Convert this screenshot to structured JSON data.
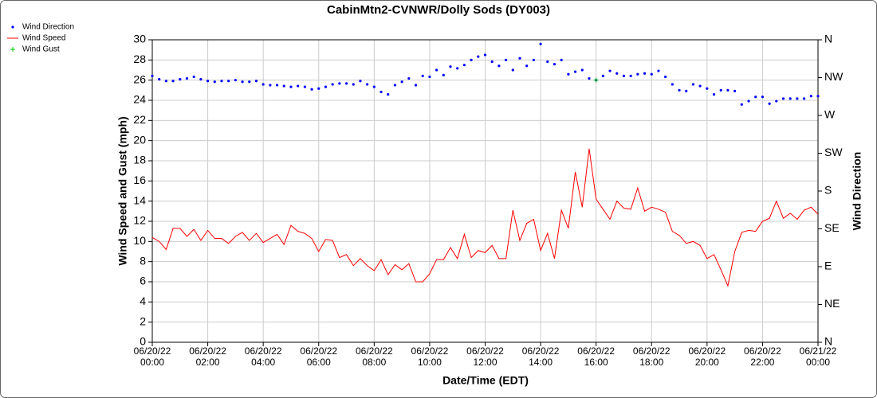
{
  "chart_data": {
    "type": "line",
    "title": "CabinMtn2-CVNWR/Dolly Sods (DY003)",
    "xlabel": "Date/Time (EDT)",
    "ylabel": "Wind Speed and Gust (mph)",
    "y2label": "Wind Direction",
    "grid": true,
    "legend": "top-left",
    "xlim": [
      "06/20/22 00:00",
      "06/21/22 00:00"
    ],
    "xticks": [
      "06/20/22 00:00",
      "06/20/22 02:00",
      "06/20/22 04:00",
      "06/20/22 06:00",
      "06/20/22 08:00",
      "06/20/22 10:00",
      "06/20/22 12:00",
      "06/20/22 14:00",
      "06/20/22 16:00",
      "06/20/22 18:00",
      "06/20/22 20:00",
      "06/20/22 22:00",
      "06/21/22 00:00"
    ],
    "ylim": [
      0,
      30
    ],
    "yticks": [
      0,
      2,
      4,
      6,
      8,
      10,
      12,
      14,
      16,
      18,
      20,
      22,
      24,
      26,
      28,
      30
    ],
    "y2lim": [
      0,
      360
    ],
    "y2ticks": [
      {
        "value": 0,
        "label": "N"
      },
      {
        "value": 45,
        "label": "NE"
      },
      {
        "value": 90,
        "label": "E"
      },
      {
        "value": 135,
        "label": "SE"
      },
      {
        "value": 180,
        "label": "S"
      },
      {
        "value": 225,
        "label": "SW"
      },
      {
        "value": 270,
        "label": "W"
      },
      {
        "value": 315,
        "label": "NW"
      },
      {
        "value": 360,
        "label": "N"
      }
    ],
    "x": [
      "06/20/22 00:00",
      "06/20/22 00:15",
      "06/20/22 00:30",
      "06/20/22 00:45",
      "06/20/22 01:00",
      "06/20/22 01:15",
      "06/20/22 01:30",
      "06/20/22 01:45",
      "06/20/22 02:00",
      "06/20/22 02:15",
      "06/20/22 02:30",
      "06/20/22 02:45",
      "06/20/22 03:00",
      "06/20/22 03:15",
      "06/20/22 03:30",
      "06/20/22 03:45",
      "06/20/22 04:00",
      "06/20/22 04:15",
      "06/20/22 04:30",
      "06/20/22 04:45",
      "06/20/22 05:00",
      "06/20/22 05:15",
      "06/20/22 05:30",
      "06/20/22 05:45",
      "06/20/22 06:00",
      "06/20/22 06:15",
      "06/20/22 06:30",
      "06/20/22 06:45",
      "06/20/22 07:00",
      "06/20/22 07:15",
      "06/20/22 07:30",
      "06/20/22 07:45",
      "06/20/22 08:00",
      "06/20/22 08:15",
      "06/20/22 08:30",
      "06/20/22 08:45",
      "06/20/22 09:00",
      "06/20/22 09:15",
      "06/20/22 09:30",
      "06/20/22 09:45",
      "06/20/22 10:00",
      "06/20/22 10:15",
      "06/20/22 10:30",
      "06/20/22 10:45",
      "06/20/22 11:00",
      "06/20/22 11:15",
      "06/20/22 11:30",
      "06/20/22 11:45",
      "06/20/22 12:00",
      "06/20/22 12:15",
      "06/20/22 12:30",
      "06/20/22 12:45",
      "06/20/22 13:00",
      "06/20/22 13:15",
      "06/20/22 13:30",
      "06/20/22 13:45",
      "06/20/22 14:00",
      "06/20/22 14:15",
      "06/20/22 14:30",
      "06/20/22 14:45",
      "06/20/22 15:00",
      "06/20/22 15:15",
      "06/20/22 15:30",
      "06/20/22 15:45",
      "06/20/22 16:00",
      "06/20/22 16:15",
      "06/20/22 16:30",
      "06/20/22 16:45",
      "06/20/22 17:00",
      "06/20/22 17:15",
      "06/20/22 17:30",
      "06/20/22 17:45",
      "06/20/22 18:00",
      "06/20/22 18:15",
      "06/20/22 18:30",
      "06/20/22 18:45",
      "06/20/22 19:00",
      "06/20/22 19:15",
      "06/20/22 19:30",
      "06/20/22 19:45",
      "06/20/22 20:00",
      "06/20/22 20:15",
      "06/20/22 20:30",
      "06/20/22 20:45",
      "06/20/22 21:00",
      "06/20/22 21:15",
      "06/20/22 21:30",
      "06/20/22 21:45",
      "06/20/22 22:00",
      "06/20/22 22:15",
      "06/20/22 22:30",
      "06/20/22 22:45",
      "06/20/22 23:00",
      "06/20/22 23:15",
      "06/20/22 23:30",
      "06/20/22 23:45",
      "06/21/22 00:00"
    ],
    "series": [
      {
        "name": "Wind Direction",
        "color": "#0000ff",
        "axis": "y2",
        "mode": "markers",
        "values": [
          317,
          313,
          311,
          311,
          313,
          314,
          316,
          313,
          311,
          310,
          311,
          311,
          312,
          310,
          310,
          311,
          307,
          306,
          306,
          305,
          304,
          305,
          304,
          301,
          302,
          304,
          307,
          308,
          308,
          307,
          311,
          307,
          304,
          298,
          295,
          306,
          310,
          314,
          306,
          317,
          316,
          324,
          318,
          328,
          326,
          330,
          336,
          340,
          342,
          334,
          329,
          336,
          324,
          338,
          329,
          336,
          355,
          334,
          331,
          336,
          319,
          322,
          324,
          314,
          312,
          317,
          323,
          320,
          317,
          317,
          319,
          320,
          319,
          323,
          316,
          307,
          300,
          299,
          307,
          305,
          302,
          295,
          300,
          300,
          299,
          283,
          287,
          292,
          292,
          284,
          287,
          290,
          290,
          290,
          290,
          293,
          293
        ]
      },
      {
        "name": "Wind Speed",
        "color": "#ff0000",
        "mode": "line",
        "values": [
          10.4,
          10.0,
          9.2,
          11.3,
          11.3,
          10.5,
          11.2,
          10.1,
          11.1,
          10.3,
          10.3,
          9.8,
          10.5,
          10.9,
          10.1,
          10.8,
          9.9,
          10.3,
          10.7,
          9.7,
          11.6,
          11.0,
          10.8,
          10.3,
          9.0,
          10.2,
          10.1,
          8.4,
          8.7,
          7.6,
          8.3,
          7.6,
          7.1,
          8.2,
          6.7,
          7.7,
          7.2,
          7.8,
          6.0,
          6.0,
          6.8,
          8.2,
          8.2,
          9.4,
          8.3,
          10.7,
          8.4,
          9.1,
          8.9,
          9.6,
          8.3,
          8.3,
          13.1,
          10.1,
          11.8,
          12.2,
          9.1,
          10.8,
          8.3,
          13.1,
          11.3,
          16.9,
          13.4,
          19.2,
          14.2,
          13.2,
          12.2,
          14.0,
          13.3,
          13.2,
          15.3,
          13.0,
          13.4,
          13.2,
          12.9,
          11.0,
          10.6,
          9.8,
          10.0,
          9.6,
          8.3,
          8.7,
          7.2,
          5.6,
          9.0,
          10.9,
          11.1,
          11.0,
          12.0,
          12.3,
          14.0,
          12.3,
          12.8,
          12.2,
          13.1,
          13.4,
          12.7
        ]
      },
      {
        "name": "Wind Gust",
        "color": "#00cc00",
        "mode": "plus",
        "values": [
          null,
          null,
          null,
          null,
          null,
          null,
          null,
          null,
          null,
          null,
          null,
          null,
          null,
          null,
          null,
          null,
          null,
          null,
          null,
          null,
          null,
          null,
          null,
          null,
          null,
          null,
          null,
          null,
          null,
          null,
          null,
          null,
          null,
          null,
          null,
          null,
          null,
          null,
          null,
          null,
          null,
          null,
          null,
          null,
          null,
          null,
          null,
          null,
          null,
          null,
          null,
          null,
          null,
          null,
          null,
          null,
          null,
          null,
          null,
          null,
          null,
          null,
          null,
          null,
          26,
          null,
          null,
          null,
          null,
          null,
          null,
          null,
          null,
          null,
          null,
          null,
          null,
          null,
          null,
          null,
          null,
          null,
          null,
          null,
          null,
          null,
          null,
          null,
          null,
          null,
          null,
          null,
          null,
          null,
          null,
          null,
          null
        ]
      }
    ]
  }
}
